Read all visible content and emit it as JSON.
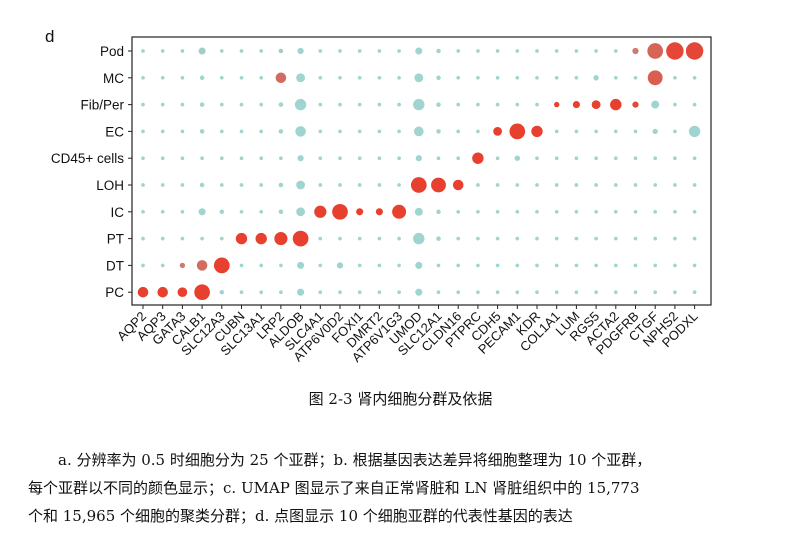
{
  "figure": {
    "panel_label": "d",
    "caption": "图 2-3 肾内细胞分群及依据"
  },
  "chart_data": {
    "type": "dotplot",
    "rows": [
      "Pod",
      "MC",
      "Fib/Per",
      "EC",
      "CD45+ cells",
      "LOH",
      "IC",
      "PT",
      "DT",
      "PC"
    ],
    "genes": [
      "AQP2",
      "AQP3",
      "GATA3",
      "CALB1",
      "SLC12A3",
      "CUBN",
      "SLC13A1",
      "LRP2",
      "ALDOB",
      "SLC4A1",
      "ATP6V0D2",
      "FOXI1",
      "DMRT2",
      "ATP6V1G3",
      "UMOD",
      "SLC12A1",
      "CLDN16",
      "PTPRC",
      "CDH5",
      "PECAM1",
      "KDR",
      "COL1A1",
      "LUM",
      "RGS5",
      "ACTA2",
      "PDGFRB",
      "CTGF",
      "NPHS2",
      "PODXL"
    ],
    "colors": {
      "high": "#e8402f",
      "low": "#9fd4d1"
    },
    "note": "size = fraction of expressing cells (0-1); expr = scaled expression (0-1)",
    "points": {
      "Pod": {
        "size": [
          0.05,
          0.05,
          0.05,
          0.25,
          0.05,
          0.05,
          0.05,
          0.1,
          0.2,
          0.05,
          0.05,
          0.05,
          0.05,
          0.05,
          0.25,
          0.1,
          0.05,
          0.05,
          0.05,
          0.05,
          0.05,
          0.05,
          0.05,
          0.05,
          0.05,
          0.2,
          0.75,
          0.85,
          0.85
        ],
        "expr": [
          0,
          0,
          0,
          0.05,
          0,
          0,
          0,
          0.05,
          0,
          0,
          0,
          0,
          0,
          0,
          0,
          0,
          0,
          0,
          0,
          0,
          0,
          0,
          0,
          0,
          0,
          0.6,
          0.75,
          0.95,
          0.95
        ]
      },
      "MC": {
        "size": [
          0.05,
          0.05,
          0.05,
          0.1,
          0.05,
          0.05,
          0.05,
          0.45,
          0.35,
          0.05,
          0.05,
          0.05,
          0.05,
          0.05,
          0.35,
          0.1,
          0.05,
          0.05,
          0.05,
          0.05,
          0.05,
          0.05,
          0.05,
          0.15,
          0.05,
          0.05,
          0.7,
          0.05,
          0.05
        ],
        "expr": [
          0,
          0,
          0,
          0,
          0,
          0,
          0,
          0.7,
          0,
          0,
          0,
          0,
          0,
          0,
          0,
          0,
          0,
          0,
          0,
          0,
          0,
          0,
          0,
          0,
          0,
          0,
          0.8,
          0,
          0
        ]
      },
      "Fib/Per": {
        "size": [
          0.05,
          0.05,
          0.05,
          0.1,
          0.05,
          0.05,
          0.05,
          0.1,
          0.5,
          0.05,
          0.05,
          0.05,
          0.05,
          0.05,
          0.5,
          0.1,
          0.05,
          0.05,
          0.05,
          0.05,
          0.05,
          0.15,
          0.25,
          0.35,
          0.5,
          0.2,
          0.3,
          0.05,
          0.05
        ],
        "expr": [
          0,
          0,
          0,
          0,
          0,
          0,
          0,
          0,
          0,
          0,
          0,
          0,
          0,
          0,
          0,
          0,
          0,
          0,
          0,
          0,
          0,
          1,
          1,
          1,
          1,
          0.95,
          0,
          0,
          0
        ]
      },
      "EC": {
        "size": [
          0.05,
          0.05,
          0.05,
          0.1,
          0.05,
          0.05,
          0.05,
          0.1,
          0.45,
          0.05,
          0.05,
          0.05,
          0.05,
          0.05,
          0.4,
          0.1,
          0.05,
          0.05,
          0.35,
          0.75,
          0.5,
          0.05,
          0.05,
          0.05,
          0.05,
          0.05,
          0.15,
          0.05,
          0.5
        ],
        "expr": [
          0,
          0,
          0,
          0,
          0,
          0,
          0,
          0,
          0,
          0,
          0,
          0,
          0,
          0,
          0,
          0,
          0,
          0,
          1,
          1,
          1,
          0,
          0,
          0,
          0,
          0,
          0,
          0,
          0
        ]
      },
      "CD45+ cells": {
        "size": [
          0.05,
          0.05,
          0.05,
          0.05,
          0.05,
          0.05,
          0.05,
          0.05,
          0.2,
          0.05,
          0.05,
          0.05,
          0.05,
          0.05,
          0.2,
          0.05,
          0.05,
          0.5,
          0.05,
          0.15,
          0.05,
          0.05,
          0.05,
          0.05,
          0.05,
          0.05,
          0.05,
          0.05,
          0.05
        ],
        "expr": [
          0,
          0,
          0,
          0,
          0,
          0,
          0,
          0,
          0,
          0,
          0,
          0,
          0,
          0,
          0,
          0,
          0,
          1,
          0,
          0,
          0,
          0,
          0,
          0,
          0,
          0,
          0,
          0,
          0
        ]
      },
      "LOH": {
        "size": [
          0.05,
          0.05,
          0.05,
          0.1,
          0.05,
          0.05,
          0.05,
          0.1,
          0.35,
          0.05,
          0.05,
          0.05,
          0.05,
          0.05,
          0.75,
          0.7,
          0.45,
          0.05,
          0.05,
          0.05,
          0.05,
          0.05,
          0.05,
          0.05,
          0.05,
          0.05,
          0.05,
          0.05,
          0.05
        ],
        "expr": [
          0,
          0,
          0,
          0,
          0,
          0,
          0,
          0,
          0,
          0,
          0,
          0,
          0,
          0,
          1,
          1,
          1,
          0,
          0,
          0,
          0,
          0,
          0,
          0,
          0,
          0,
          0,
          0,
          0
        ]
      },
      "IC": {
        "size": [
          0.05,
          0.05,
          0.05,
          0.25,
          0.1,
          0.05,
          0.05,
          0.1,
          0.35,
          0.55,
          0.75,
          0.25,
          0.25,
          0.65,
          0.3,
          0.1,
          0.05,
          0.05,
          0.05,
          0.05,
          0.05,
          0.05,
          0.05,
          0.05,
          0.05,
          0.05,
          0.05,
          0.05,
          0.05
        ],
        "expr": [
          0,
          0,
          0,
          0,
          0,
          0,
          0,
          0,
          0,
          1,
          1,
          1,
          1,
          1,
          0,
          0,
          0,
          0,
          0,
          0,
          0,
          0,
          0,
          0,
          0,
          0,
          0,
          0,
          0
        ]
      },
      "PT": {
        "size": [
          0.05,
          0.05,
          0.05,
          0.05,
          0.05,
          0.5,
          0.5,
          0.6,
          0.75,
          0.05,
          0.05,
          0.05,
          0.05,
          0.05,
          0.5,
          0.1,
          0.05,
          0.05,
          0.05,
          0.05,
          0.05,
          0.05,
          0.05,
          0.05,
          0.05,
          0.05,
          0.05,
          0.05,
          0.05
        ],
        "expr": [
          0,
          0,
          0,
          0,
          0,
          1,
          1,
          1,
          1,
          0,
          0,
          0,
          0,
          0,
          0,
          0,
          0,
          0,
          0,
          0,
          0,
          0,
          0,
          0,
          0,
          0,
          0,
          0,
          0
        ]
      },
      "DT": {
        "size": [
          0.05,
          0.05,
          0.15,
          0.45,
          0.75,
          0.05,
          0.05,
          0.05,
          0.25,
          0.05,
          0.2,
          0.05,
          0.05,
          0.05,
          0.25,
          0.05,
          0.05,
          0.05,
          0.05,
          0.05,
          0.05,
          0.05,
          0.05,
          0.05,
          0.05,
          0.05,
          0.05,
          0.05,
          0.05
        ],
        "expr": [
          0,
          0,
          0.6,
          0.7,
          1,
          0,
          0,
          0,
          0,
          0,
          0,
          0,
          0,
          0,
          0,
          0,
          0,
          0,
          0,
          0,
          0,
          0,
          0,
          0,
          0,
          0,
          0,
          0,
          0
        ]
      },
      "PC": {
        "size": [
          0.45,
          0.45,
          0.4,
          0.75,
          0.1,
          0.05,
          0.05,
          0.05,
          0.25,
          0.05,
          0.05,
          0.05,
          0.05,
          0.05,
          0.25,
          0.05,
          0.05,
          0.05,
          0.05,
          0.05,
          0.05,
          0.05,
          0.05,
          0.05,
          0.05,
          0.05,
          0.05,
          0.05,
          0.05
        ],
        "expr": [
          1,
          1,
          1,
          1,
          0,
          0,
          0,
          0,
          0,
          0,
          0,
          0,
          0,
          0,
          0,
          0,
          0,
          0,
          0,
          0,
          0,
          0,
          0,
          0,
          0,
          0,
          0,
          0,
          0
        ]
      }
    }
  },
  "paragraph": {
    "line1": "a. 分辨率为 0.5 时细胞分为 25 个亚群；b. 根据基因表达差异将细胞整理为 10 个亚群，",
    "line2": "每个亚群以不同的颜色显示；c. UMAP 图显示了来自正常肾脏和 LN 肾脏组织中的 15,773",
    "line3": "个和 15,965 个细胞的聚类分群；d. 点图显示 10 个细胞亚群的代表性基因的表达"
  }
}
